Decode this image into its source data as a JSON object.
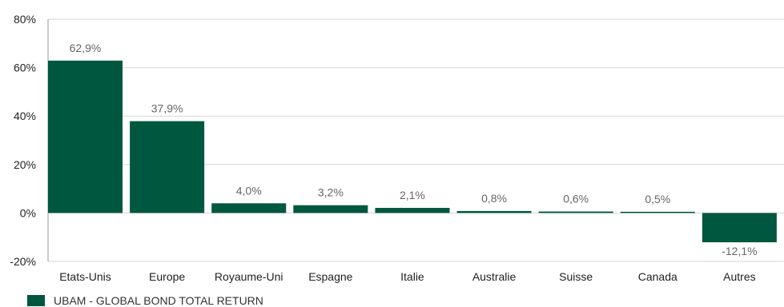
{
  "chart_data": {
    "type": "bar",
    "categories": [
      "Etats-Unis",
      "Europe",
      "Royaume-Uni",
      "Espagne",
      "Italie",
      "Australie",
      "Suisse",
      "Canada",
      "Autres"
    ],
    "series": [
      {
        "name": "UBAM - GLOBAL BOND TOTAL RETURN",
        "values": [
          62.9,
          37.9,
          4.0,
          3.2,
          2.1,
          0.8,
          0.6,
          0.5,
          -12.1
        ],
        "labels": [
          "62,9%",
          "37,9%",
          "4,0%",
          "3,2%",
          "2,1%",
          "0,8%",
          "0,6%",
          "0,5%",
          "-12,1%"
        ]
      }
    ],
    "ylim": [
      -20,
      80
    ],
    "yticks": [
      -20,
      0,
      20,
      40,
      60,
      80
    ],
    "ytick_labels": [
      "-20%",
      "0%",
      "20%",
      "40%",
      "60%",
      "80%"
    ],
    "grid": true,
    "legend": "bottom-left",
    "bar_color": "#00573f"
  }
}
